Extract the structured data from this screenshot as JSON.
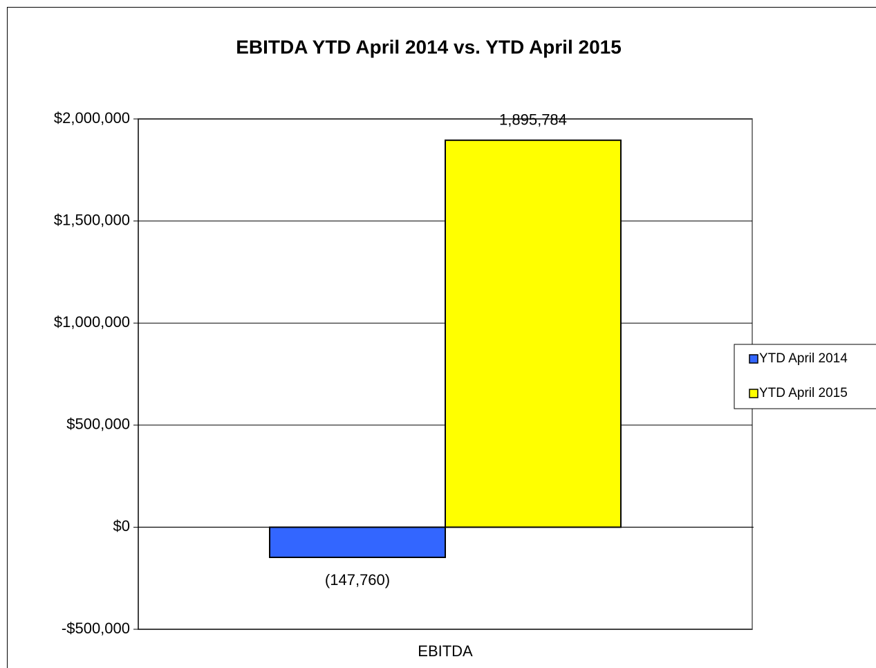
{
  "chart_data": {
    "type": "bar",
    "title": "EBITDA YTD April 2014 vs. YTD April 2015",
    "categories": [
      "EBITDA"
    ],
    "series": [
      {
        "name": "YTD April 2014",
        "color": "#3366ff",
        "values": [
          -147760
        ],
        "value_labels": [
          "(147,760)"
        ]
      },
      {
        "name": "YTD April 2015",
        "color": "#ffff00",
        "values": [
          1895784
        ],
        "value_labels": [
          "1,895,784"
        ]
      }
    ],
    "ylim": [
      -500000,
      2000000
    ],
    "yticks": [
      {
        "value": -500000,
        "label": "-$500,000"
      },
      {
        "value": 0,
        "label": "$0"
      },
      {
        "value": 500000,
        "label": "$500,000"
      },
      {
        "value": 1000000,
        "label": "$1,000,000"
      },
      {
        "value": 1500000,
        "label": "$1,500,000"
      },
      {
        "value": 2000000,
        "label": "$2,000,000"
      }
    ],
    "grid": true,
    "legend": "right"
  }
}
